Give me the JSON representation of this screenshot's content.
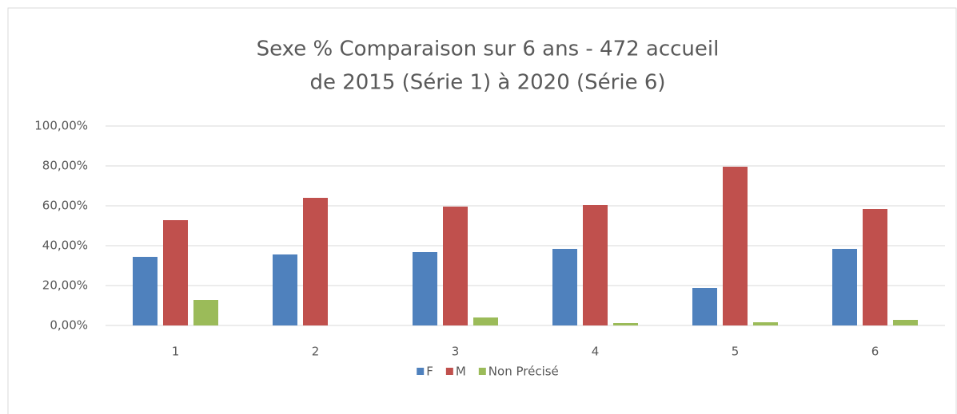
{
  "chart_data": {
    "type": "bar",
    "title": [
      "Sexe % Comparaison sur 6 ans - 472 accueil",
      "de 2015 (Série 1) à 2020 (Série 6)"
    ],
    "categories": [
      "1",
      "2",
      "3",
      "4",
      "5",
      "6"
    ],
    "series": [
      {
        "name": "F",
        "color": "#4f81bd",
        "values": [
          34.4,
          35.6,
          36.8,
          38.4,
          18.8,
          38.4
        ]
      },
      {
        "name": "M",
        "color": "#c0504d",
        "values": [
          52.8,
          64,
          59.6,
          60.4,
          79.6,
          58.4
        ]
      },
      {
        "name": "Non Précisé",
        "color": "#9bbb59",
        "values": [
          12.8,
          0,
          4,
          1.2,
          1.6,
          2.8
        ]
      }
    ],
    "ylim": [
      0,
      100
    ],
    "yticks": [
      {
        "value": 0,
        "label": "0,00%"
      },
      {
        "value": 20,
        "label": "20,00%"
      },
      {
        "value": 40,
        "label": "40,00%"
      },
      {
        "value": 60,
        "label": "60,00%"
      },
      {
        "value": 80,
        "label": "80,00%"
      },
      {
        "value": 100,
        "label": "100,00%"
      }
    ],
    "grid": true,
    "legend": "bottom"
  }
}
